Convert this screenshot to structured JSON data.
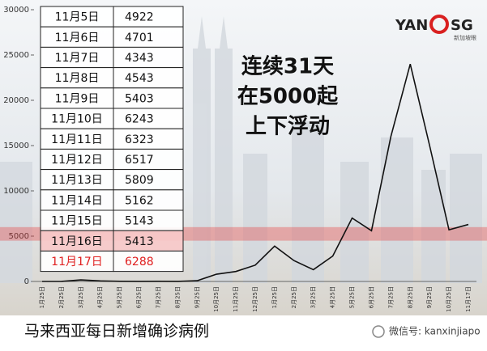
{
  "chart_data": {
    "type": "line",
    "categories": [
      "1月25日",
      "2月25日",
      "3月25日",
      "4月25日",
      "5月25日",
      "6月25日",
      "7月25日",
      "8月25日",
      "9月25日",
      "10月25日",
      "11月25日",
      "12月25日",
      "1月25日",
      "2月25日",
      "3月25日",
      "4月25日",
      "5月25日",
      "6月25日",
      "7月25日",
      "8月25日",
      "9月25日",
      "10月25日",
      "11月17日"
    ],
    "series": [
      {
        "color": "#111111",
        "values": [
          0,
          10,
          170,
          60,
          20,
          10,
          15,
          10,
          80,
          800,
          1100,
          1800,
          3900,
          2300,
          1300,
          2800,
          7000,
          5600,
          16000,
          24000,
          15000,
          5700,
          6288
        ]
      }
    ],
    "ylim": [
      0,
      30000
    ],
    "yticks": [
      0,
      5000,
      10000,
      15000,
      20000,
      25000,
      30000
    ],
    "grid": false,
    "band": {
      "color": "#e83a3a",
      "range": [
        4500,
        6000
      ]
    },
    "annotation": [
      "连续31天",
      "在5000起",
      "上下浮动"
    ],
    "table": {
      "rows": [
        [
          "11月5日",
          4922
        ],
        [
          "11月6日",
          4701
        ],
        [
          "11月7日",
          4343
        ],
        [
          "11月8日",
          4543
        ],
        [
          "11月9日",
          5403
        ],
        [
          "11月10日",
          6243
        ],
        [
          "11月11日",
          6323
        ],
        [
          "11月12日",
          6517
        ],
        [
          "11月13日",
          5809
        ],
        [
          "11月14日",
          5162
        ],
        [
          "11月15日",
          5143
        ],
        [
          "11月16日",
          5413
        ],
        [
          "11月17日",
          6288
        ]
      ],
      "highlight_color": "#e02020"
    },
    "caption": "马来西亚每日新增确诊病例",
    "watermark": "微信号: kanxinjiapo",
    "logo": {
      "left": "YAN",
      "right": "SG",
      "sub": "新加坡眼"
    }
  }
}
